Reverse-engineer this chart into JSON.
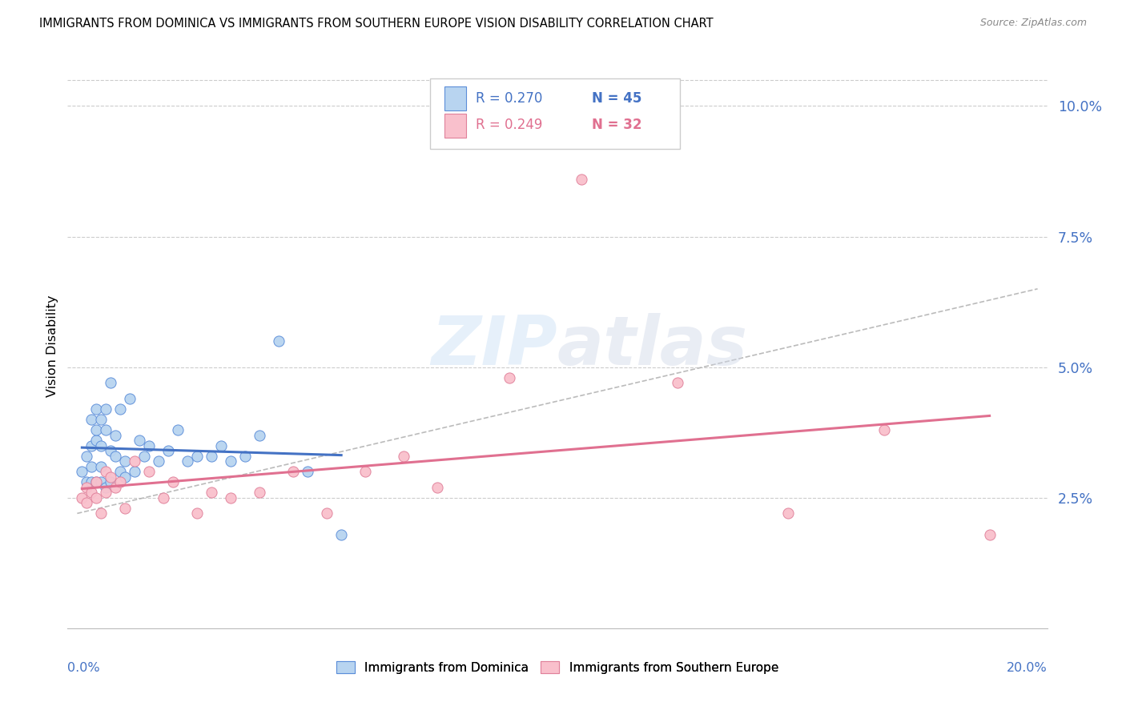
{
  "title": "IMMIGRANTS FROM DOMINICA VS IMMIGRANTS FROM SOUTHERN EUROPE VISION DISABILITY CORRELATION CHART",
  "source": "Source: ZipAtlas.com",
  "ylabel": "Vision Disability",
  "color_blue_fill": "#b8d4f0",
  "color_blue_edge": "#5b8dd9",
  "color_blue_line": "#4472C4",
  "color_blue_text": "#4472C4",
  "color_pink_fill": "#f9c0cc",
  "color_pink_edge": "#e0809a",
  "color_pink_line": "#e07090",
  "color_pink_text": "#e07090",
  "ytick_labels": [
    "2.5%",
    "5.0%",
    "7.5%",
    "10.0%"
  ],
  "ytick_vals": [
    0.025,
    0.05,
    0.075,
    0.1
  ],
  "xlim": [
    0.0,
    0.2
  ],
  "ylim": [
    0.0,
    0.108
  ],
  "legend_r1": "0.270",
  "legend_n1": "45",
  "legend_r2": "0.249",
  "legend_n2": "32",
  "label_dom": "Immigrants from Dominica",
  "label_seu": "Immigrants from Southern Europe",
  "dom_x": [
    0.001,
    0.002,
    0.002,
    0.003,
    0.003,
    0.003,
    0.003,
    0.004,
    0.004,
    0.004,
    0.004,
    0.005,
    0.005,
    0.005,
    0.005,
    0.006,
    0.006,
    0.006,
    0.007,
    0.007,
    0.007,
    0.008,
    0.008,
    0.009,
    0.009,
    0.01,
    0.01,
    0.011,
    0.012,
    0.013,
    0.014,
    0.015,
    0.017,
    0.019,
    0.021,
    0.023,
    0.025,
    0.028,
    0.03,
    0.032,
    0.035,
    0.038,
    0.042,
    0.048,
    0.055
  ],
  "dom_y": [
    0.03,
    0.033,
    0.028,
    0.031,
    0.035,
    0.04,
    0.028,
    0.036,
    0.042,
    0.028,
    0.038,
    0.031,
    0.035,
    0.04,
    0.028,
    0.038,
    0.042,
    0.027,
    0.034,
    0.047,
    0.028,
    0.033,
    0.037,
    0.03,
    0.042,
    0.029,
    0.032,
    0.044,
    0.03,
    0.036,
    0.033,
    0.035,
    0.032,
    0.034,
    0.038,
    0.032,
    0.033,
    0.033,
    0.035,
    0.032,
    0.033,
    0.037,
    0.055,
    0.03,
    0.018
  ],
  "seu_x": [
    0.001,
    0.002,
    0.002,
    0.003,
    0.004,
    0.004,
    0.005,
    0.006,
    0.006,
    0.007,
    0.008,
    0.009,
    0.01,
    0.012,
    0.015,
    0.018,
    0.02,
    0.025,
    0.028,
    0.032,
    0.038,
    0.045,
    0.052,
    0.06,
    0.068,
    0.075,
    0.09,
    0.105,
    0.125,
    0.148,
    0.168,
    0.19
  ],
  "seu_y": [
    0.025,
    0.027,
    0.024,
    0.026,
    0.028,
    0.025,
    0.022,
    0.03,
    0.026,
    0.029,
    0.027,
    0.028,
    0.023,
    0.032,
    0.03,
    0.025,
    0.028,
    0.022,
    0.026,
    0.025,
    0.026,
    0.03,
    0.022,
    0.03,
    0.033,
    0.027,
    0.048,
    0.086,
    0.047,
    0.022,
    0.038,
    0.018
  ],
  "dash_line_x": [
    0.0,
    0.2
  ],
  "dash_line_y": [
    0.022,
    0.065
  ]
}
